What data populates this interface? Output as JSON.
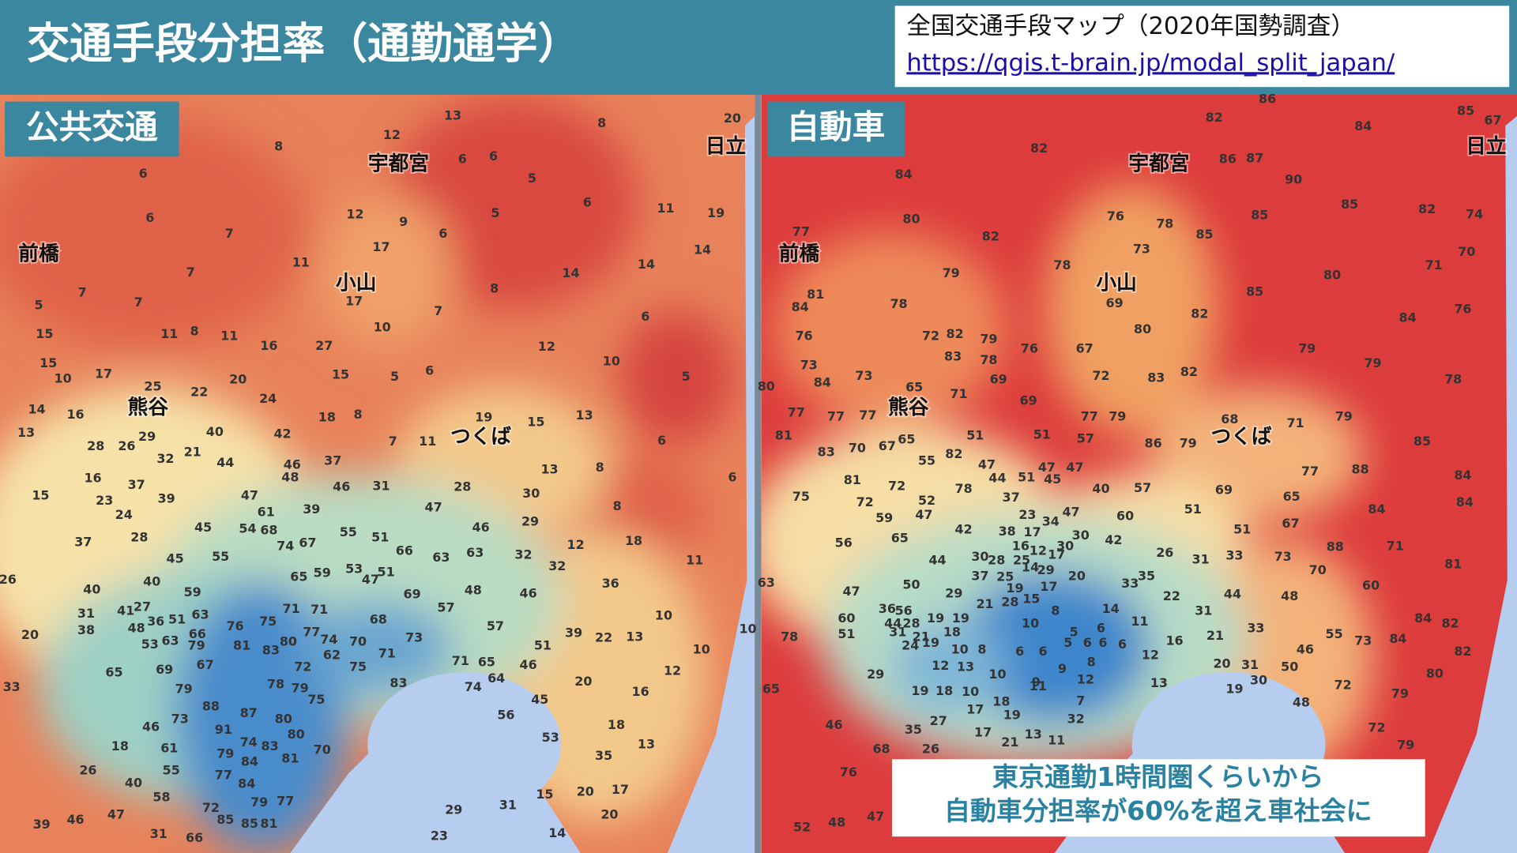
{
  "header": {
    "title": "交通手段分担率（通勤通学）",
    "source": "全国交通手段マップ（2020年国勢調査）",
    "url": "https://qgis.t-brain.jp/modal_split_japan/"
  },
  "maps": [
    {
      "label": "公共交通",
      "cities": [
        "宇都宮",
        "前橋",
        "小山",
        "熊谷",
        "つくば",
        "日立"
      ],
      "values": [
        8,
        12,
        13,
        8,
        20,
        6,
        6,
        6,
        5,
        6,
        11,
        19,
        6,
        7,
        12,
        9,
        5,
        6,
        17,
        14,
        7,
        11,
        14,
        14,
        8,
        7,
        7,
        5,
        17,
        7,
        6,
        15,
        11,
        8,
        11,
        16,
        27,
        10,
        12,
        15,
        10,
        17,
        5,
        6,
        15,
        10,
        25,
        22,
        20,
        24,
        5,
        14,
        16,
        18,
        8,
        11,
        7,
        19,
        15,
        13,
        13,
        29,
        40,
        42,
        37,
        6,
        28,
        26,
        32,
        21,
        44,
        46,
        13,
        8,
        16,
        37,
        48,
        31,
        28,
        6,
        15,
        23,
        39,
        47,
        46,
        30,
        8,
        24,
        61,
        39,
        47,
        29,
        28,
        45,
        54,
        68,
        55,
        51,
        46,
        37,
        12,
        18,
        63,
        63,
        45,
        55,
        74,
        67,
        66,
        32,
        11,
        26,
        40,
        53,
        47,
        51,
        32,
        40,
        59,
        65,
        59,
        48,
        46,
        36,
        69,
        27,
        41,
        63,
        71,
        71,
        57,
        31,
        38,
        36,
        51,
        76,
        75,
        68,
        10,
        10,
        20,
        48,
        66,
        77,
        74,
        70,
        73,
        57,
        39,
        22,
        13,
        53,
        63,
        79,
        81,
        83,
        80,
        62,
        71,
        51,
        10,
        65,
        69,
        67,
        72,
        75,
        71,
        65,
        46,
        12,
        33,
        79,
        78,
        79,
        83,
        74,
        64,
        20,
        16,
        88,
        87,
        75,
        45,
        46,
        73,
        80,
        56,
        18,
        91,
        80,
        61,
        74,
        83,
        53,
        13,
        18,
        79,
        70,
        35,
        26,
        55,
        84,
        81,
        77,
        40,
        84,
        15,
        20,
        17,
        58,
        72,
        79,
        77,
        31,
        29,
        47,
        39,
        46,
        85,
        85,
        81,
        20,
        31,
        66,
        23,
        14
      ]
    },
    {
      "label": "自動車",
      "cities": [
        "宇都宮",
        "前橋",
        "小山",
        "熊谷",
        "つくば",
        "日立"
      ],
      "values": [
        86,
        82,
        84,
        85,
        67,
        82,
        84,
        86,
        87,
        90,
        80,
        76,
        78,
        85,
        85,
        82,
        74,
        77,
        82,
        85,
        73,
        70,
        78,
        79,
        80,
        71,
        81,
        84,
        78,
        85,
        69,
        82,
        84,
        76,
        80,
        76,
        72,
        82,
        79,
        67,
        79,
        73,
        83,
        78,
        76,
        79,
        84,
        73,
        65,
        71,
        69,
        72,
        83,
        82,
        78,
        80,
        69,
        77,
        77,
        77,
        77,
        79,
        79,
        71,
        68,
        81,
        65,
        51,
        51,
        57,
        85,
        86,
        79,
        83,
        70,
        67,
        82,
        47,
        55,
        47,
        47,
        51,
        45,
        44,
        77,
        88,
        81,
        72,
        78,
        40,
        57,
        69,
        84,
        75,
        72,
        52,
        37,
        65,
        84,
        47,
        59,
        23,
        34,
        47,
        51,
        60,
        84,
        67,
        42,
        38,
        17,
        30,
        42,
        51,
        56,
        65,
        16,
        12,
        30,
        26,
        88,
        71,
        44,
        30,
        28,
        25,
        17,
        31,
        33,
        73,
        81,
        37,
        25,
        14,
        29,
        20,
        35,
        70,
        63,
        47,
        50,
        19,
        17,
        33,
        22,
        44,
        48,
        60,
        29,
        21,
        28,
        15,
        8,
        14,
        31,
        56,
        84,
        36,
        60,
        51,
        44,
        28,
        19,
        19,
        10,
        11,
        33,
        82,
        31,
        21,
        18,
        5,
        6,
        78,
        24,
        19,
        10,
        8,
        6,
        6,
        5,
        6,
        6,
        6,
        16,
        21,
        55,
        73,
        84,
        46,
        12,
        13,
        10,
        9,
        8,
        12,
        20,
        31,
        50,
        82,
        29,
        11,
        12,
        19,
        80,
        65,
        19,
        18,
        10,
        9,
        13,
        30,
        72,
        79,
        18,
        7,
        48,
        17,
        19,
        32,
        46,
        27,
        72,
        35,
        17,
        13,
        11,
        68,
        26,
        21,
        79,
        76,
        52,
        48,
        47
      ]
    }
  ],
  "callout": {
    "lines": [
      "東京通勤1時間圏くらいから",
      "自動車分担率が60%を超え車社会に"
    ]
  }
}
